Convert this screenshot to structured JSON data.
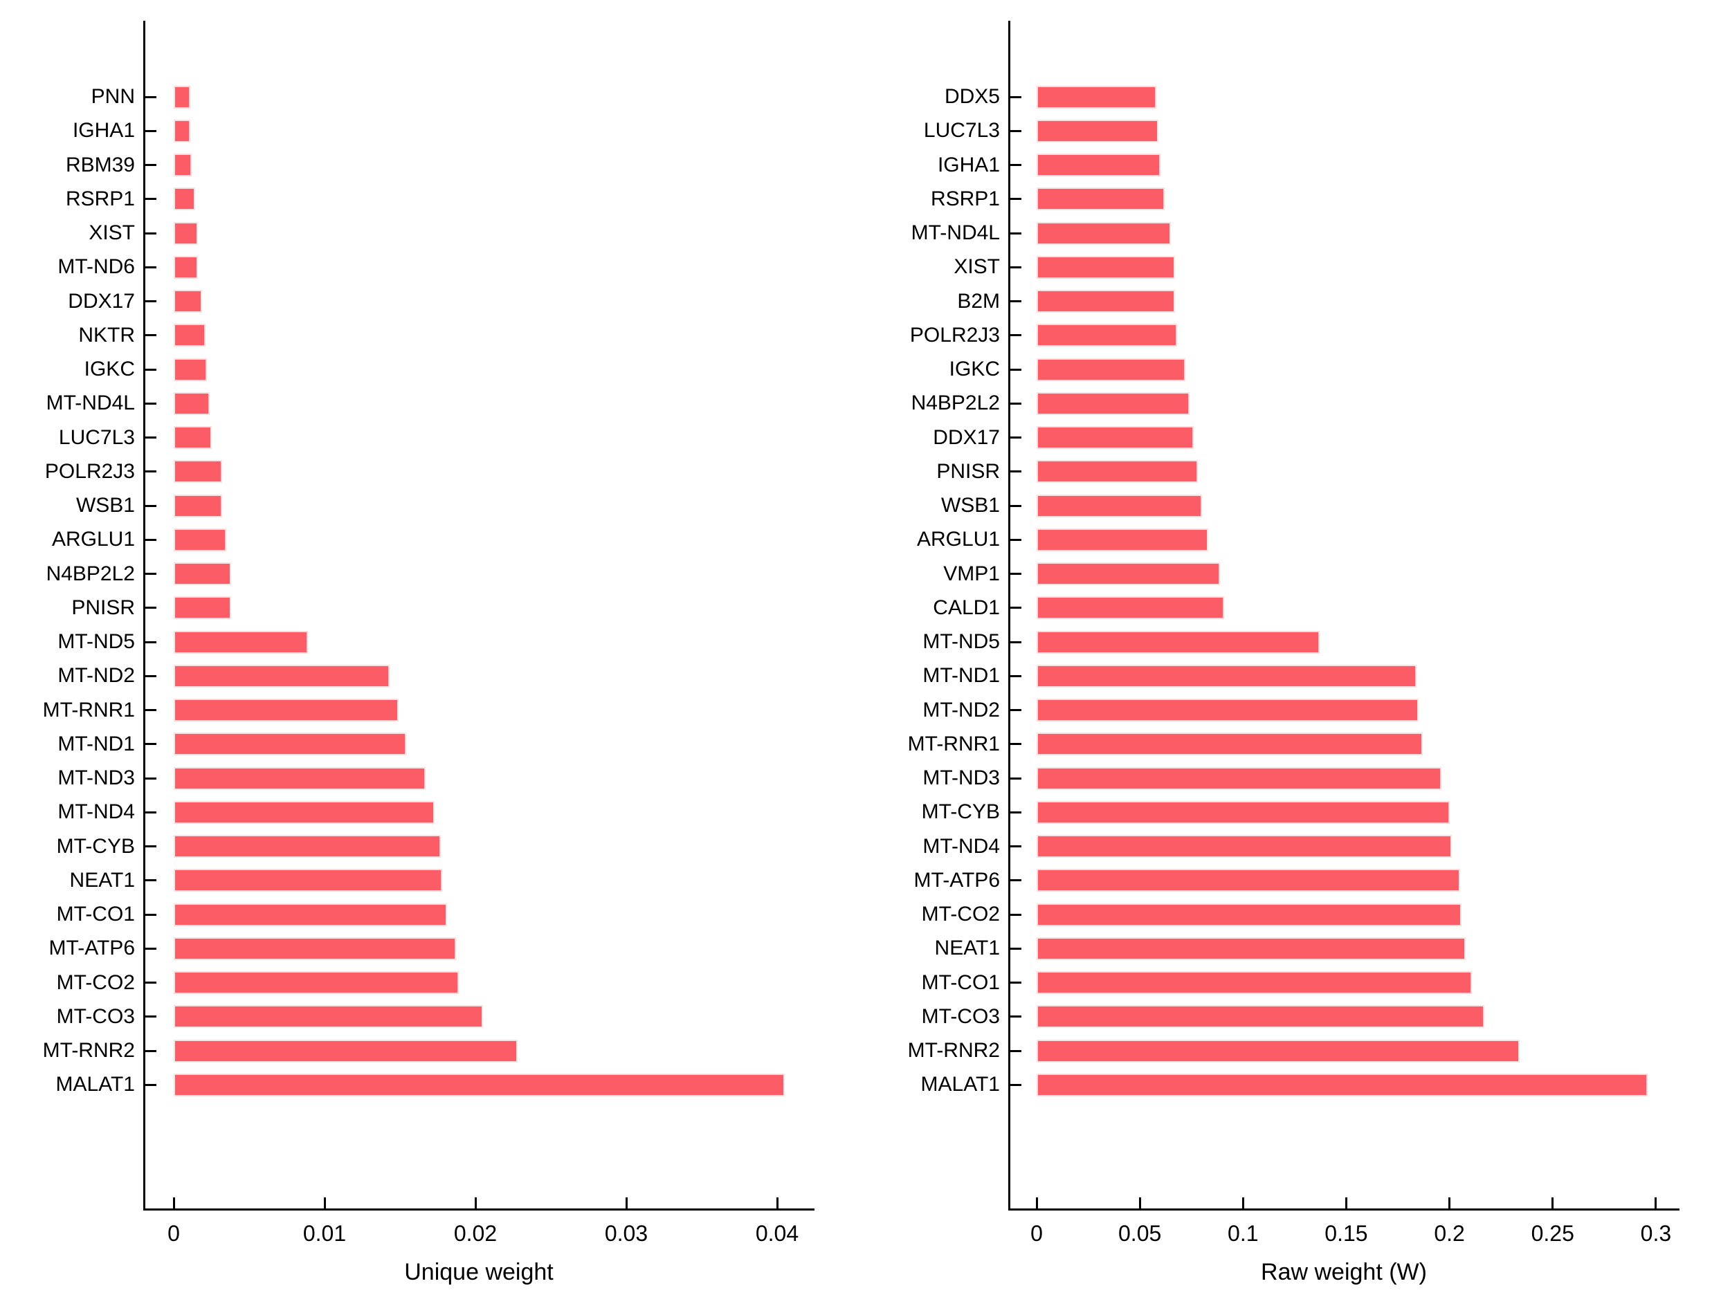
{
  "bar_color": "#fc5c66",
  "axis_color": "#000000",
  "chart_data": [
    {
      "type": "bar",
      "orientation": "horizontal",
      "xlabel": "Unique weight",
      "categories": [
        "PNN",
        "IGHA1",
        "RBM39",
        "RSRP1",
        "XIST",
        "MT-ND6",
        "DDX17",
        "NKTR",
        "IGKC",
        "MT-ND4L",
        "LUC7L3",
        "POLR2J3",
        "WSB1",
        "ARGLU1",
        "N4BP2L2",
        "PNISR",
        "MT-ND5",
        "MT-ND2",
        "MT-RNR1",
        "MT-ND1",
        "MT-ND3",
        "MT-ND4",
        "MT-CYB",
        "NEAT1",
        "MT-CO1",
        "MT-ATP6",
        "MT-CO2",
        "MT-CO3",
        "MT-RNR2",
        "MALAT1"
      ],
      "values": [
        0.0011,
        0.0011,
        0.0012,
        0.0014,
        0.0016,
        0.0016,
        0.0019,
        0.0021,
        0.0022,
        0.0024,
        0.0025,
        0.0032,
        0.0032,
        0.0035,
        0.0038,
        0.0038,
        0.0089,
        0.0143,
        0.0149,
        0.0154,
        0.0167,
        0.0173,
        0.0177,
        0.0178,
        0.0181,
        0.0187,
        0.0189,
        0.0205,
        0.0228,
        0.0405
      ],
      "xticks": [
        0,
        0.01,
        0.02,
        0.03,
        0.04
      ],
      "xtick_labels": [
        "0",
        "0.01",
        "0.02",
        "0.03",
        "0.04"
      ],
      "xlim": [
        0,
        0.0425
      ],
      "grid": false,
      "legend": null
    },
    {
      "type": "bar",
      "orientation": "horizontal",
      "xlabel": "Raw weight (W)",
      "categories": [
        "DDX5",
        "LUC7L3",
        "IGHA1",
        "RSRP1",
        "MT-ND4L",
        "XIST",
        "B2M",
        "POLR2J3",
        "IGKC",
        "N4BP2L2",
        "DDX17",
        "PNISR",
        "WSB1",
        "ARGLU1",
        "VMP1",
        "CALD1",
        "MT-ND5",
        "MT-ND1",
        "MT-ND2",
        "MT-RNR1",
        "MT-ND3",
        "MT-CYB",
        "MT-ND4",
        "MT-ATP6",
        "MT-CO2",
        "NEAT1",
        "MT-CO1",
        "MT-CO3",
        "MT-RNR2",
        "MALAT1"
      ],
      "values": [
        0.058,
        0.059,
        0.06,
        0.062,
        0.065,
        0.067,
        0.067,
        0.068,
        0.072,
        0.074,
        0.076,
        0.078,
        0.08,
        0.083,
        0.089,
        0.091,
        0.137,
        0.184,
        0.185,
        0.187,
        0.196,
        0.2,
        0.201,
        0.205,
        0.206,
        0.208,
        0.211,
        0.217,
        0.234,
        0.296
      ],
      "xticks": [
        0,
        0.05,
        0.1,
        0.15,
        0.2,
        0.25,
        0.3
      ],
      "xtick_labels": [
        "0",
        "0.05",
        "0.1",
        "0.15",
        "0.2",
        "0.25",
        "0.3"
      ],
      "xlim": [
        0,
        0.3115
      ],
      "grid": false,
      "legend": null
    }
  ]
}
